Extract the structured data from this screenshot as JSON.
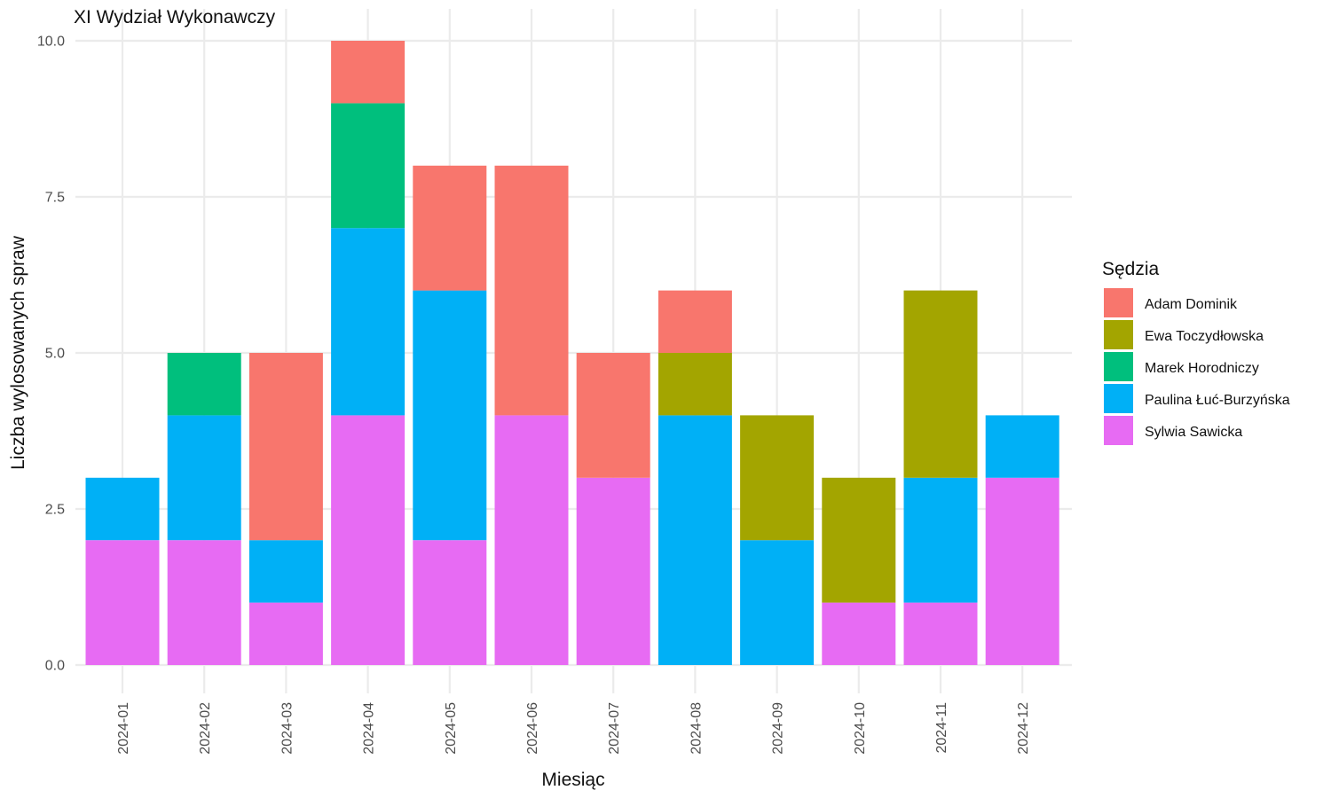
{
  "chart_data": {
    "type": "bar",
    "stacked": true,
    "title": "XI Wydział Wykonawczy",
    "xlabel": "Miesiąc",
    "ylabel": "Liczba wylosowanych spraw",
    "ylim": [
      0,
      10
    ],
    "yticks": [
      "0.0",
      "2.5",
      "5.0",
      "7.5",
      "10.0"
    ],
    "grid": true,
    "legend_title": "Sędzia",
    "legend_position": "right",
    "categories": [
      "2024-01",
      "2024-02",
      "2024-03",
      "2024-04",
      "2024-05",
      "2024-06",
      "2024-07",
      "2024-08",
      "2024-09",
      "2024-10",
      "2024-11",
      "2024-12"
    ],
    "series": [
      {
        "name": "Sylwia Sawicka",
        "color": "#E76BF3",
        "values": [
          2,
          2,
          1,
          4,
          2,
          4,
          3,
          0,
          0,
          1,
          1,
          3
        ]
      },
      {
        "name": "Paulina Łuć-Burzyńska",
        "color": "#00B0F6",
        "values": [
          1,
          2,
          1,
          3,
          4,
          0,
          0,
          4,
          2,
          0,
          2,
          1
        ]
      },
      {
        "name": "Marek Horodniczy",
        "color": "#00BF7D",
        "values": [
          0,
          1,
          0,
          2,
          0,
          0,
          0,
          0,
          0,
          0,
          0,
          0
        ]
      },
      {
        "name": "Ewa Toczydłowska",
        "color": "#A3A500",
        "values": [
          0,
          0,
          0,
          0,
          0,
          0,
          0,
          1,
          2,
          2,
          3,
          0
        ]
      },
      {
        "name": "Adam Dominik",
        "color": "#F8766D",
        "values": [
          0,
          0,
          3,
          1,
          2,
          4,
          2,
          1,
          0,
          0,
          0,
          0
        ]
      }
    ],
    "legend_order": [
      "Adam Dominik",
      "Ewa Toczydłowska",
      "Marek Horodniczy",
      "Paulina Łuć-Burzyńska",
      "Sylwia Sawicka"
    ]
  }
}
